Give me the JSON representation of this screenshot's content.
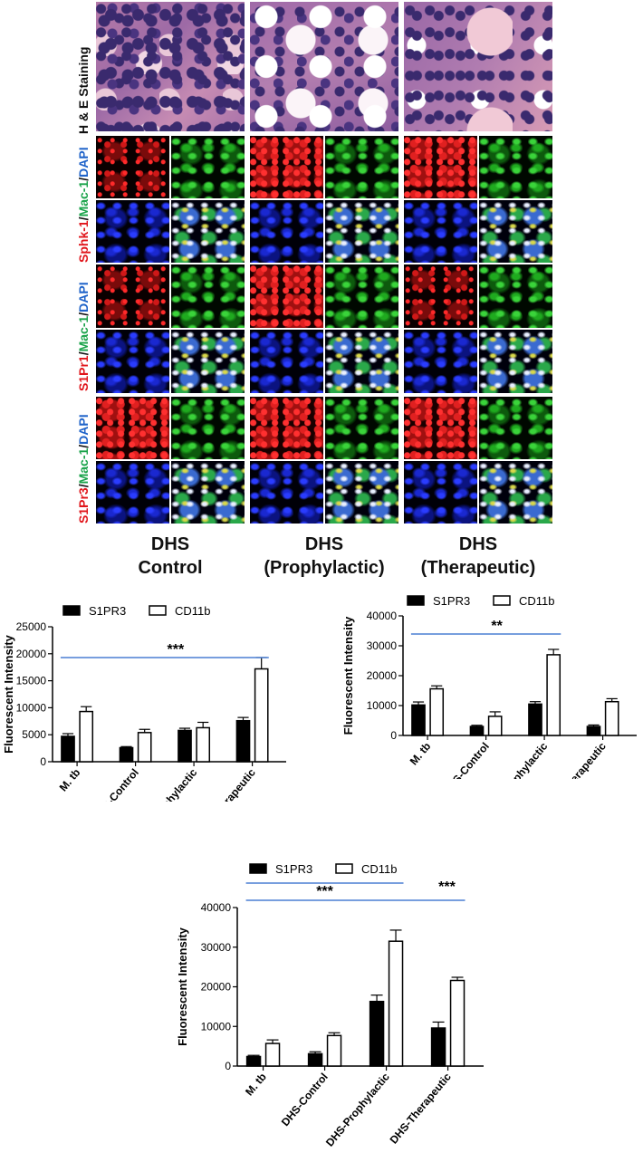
{
  "row_labels": {
    "he": "H & E Staining",
    "sphk1": {
      "a": "Sphk-1",
      "sep1": "/",
      "b": "Mac-1",
      "sep2": "/",
      "c": "DAPI"
    },
    "s1pr1": {
      "a": "S1Pr1",
      "sep1": "/",
      "b": "Mac-1",
      "sep2": "/",
      "c": "DAPI"
    },
    "s1pr3": {
      "a": "S1Pr3",
      "sep1": "/",
      "b": "Mac-1",
      "sep2": "/",
      "c": "DAPI"
    }
  },
  "column_labels": [
    {
      "line1": "DHS",
      "line2": "Control"
    },
    {
      "line1": "DHS",
      "line2": "(Prophylactic)"
    },
    {
      "line1": "DHS",
      "line2": "(Therapeutic)"
    }
  ],
  "colors": {
    "bar_filled": "#000000",
    "bar_open": "#ffffff",
    "sig_line": "#4a7fd4",
    "red_label": "#e0141a",
    "green_label": "#1aa34a",
    "blue_label": "#1f63c9"
  },
  "chart_data": [
    {
      "type": "bar",
      "categories": [
        "M. tb",
        "DHS-Control",
        "DHS-Prophylactic",
        "DHS-Therapeutic"
      ],
      "series": [
        {
          "name": "S1PR3",
          "values": [
            4700,
            2600,
            5800,
            7600
          ],
          "errors": [
            500,
            200,
            400,
            600
          ]
        },
        {
          "name": "CD11b",
          "values": [
            9300,
            5400,
            6300,
            17200
          ],
          "errors": [
            900,
            600,
            1000,
            2100
          ]
        }
      ],
      "ylabel": "Fluorescent Intensity",
      "ylim": [
        0,
        25000
      ],
      "yticks": [
        0,
        5000,
        10000,
        15000,
        20000,
        25000
      ],
      "ytick_labels": [
        "0",
        "5000",
        "10000",
        "15000",
        "20000",
        "25000"
      ],
      "legend_placement": "top-left",
      "significance": [
        {
          "from": 0,
          "to": 3,
          "label": "***"
        }
      ]
    },
    {
      "type": "bar",
      "categories": [
        "M. tb",
        "DHS-Control",
        "DHS-Prophylactic",
        "DHS-Therapeutic"
      ],
      "series": [
        {
          "name": "S1PR3",
          "values": [
            10200,
            3000,
            10500,
            3000
          ],
          "errors": [
            1000,
            400,
            800,
            500
          ]
        },
        {
          "name": "CD11b",
          "values": [
            15600,
            6400,
            27000,
            11300
          ],
          "errors": [
            1000,
            1500,
            1800,
            1000
          ]
        }
      ],
      "ylabel": "Fluorescent Intensity",
      "ylim": [
        0,
        40000
      ],
      "yticks": [
        0,
        10000,
        20000,
        30000,
        40000
      ],
      "ytick_labels": [
        "0",
        "10000",
        "20000",
        "30000",
        "40000"
      ],
      "legend_placement": "top-left",
      "significance": [
        {
          "from": 0,
          "to": 2,
          "label": "**"
        }
      ]
    },
    {
      "type": "bar",
      "categories": [
        "M. tb",
        "DHS-Control",
        "DHS-Prophylactic",
        "DHS-Therapeutic"
      ],
      "series": [
        {
          "name": "S1PR3",
          "values": [
            2400,
            3100,
            16300,
            9600
          ],
          "errors": [
            300,
            500,
            1600,
            1500
          ]
        },
        {
          "name": "CD11b",
          "values": [
            5700,
            7700,
            31500,
            21600
          ],
          "errors": [
            900,
            700,
            2800,
            800
          ]
        }
      ],
      "ylabel": "Fluorescent Intensity",
      "ylim": [
        0,
        40000
      ],
      "yticks": [
        0,
        10000,
        20000,
        30000,
        40000
      ],
      "ytick_labels": [
        "0",
        "10000",
        "20000",
        "30000",
        "40000"
      ],
      "legend_placement": "top-left",
      "significance": [
        {
          "from": 0,
          "to": 2,
          "label": "***"
        },
        {
          "from": 0,
          "to": 3,
          "label": "***"
        }
      ]
    }
  ]
}
